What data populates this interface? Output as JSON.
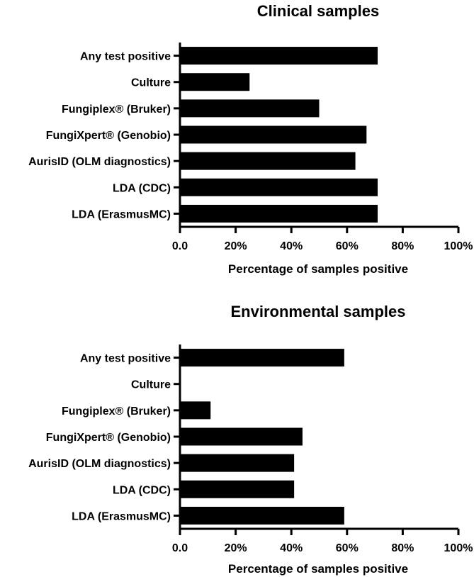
{
  "chart_data": [
    {
      "type": "bar",
      "orientation": "horizontal",
      "title": "Clinical samples",
      "categories": [
        "Any test positive",
        "Culture",
        "Fungiplex® (Bruker)",
        "FungiXpert® (Genobio)",
        "AurisID (OLM diagnostics)",
        "LDA (CDC)",
        "LDA (ErasmusMC)"
      ],
      "values": [
        71,
        25,
        50,
        67,
        63,
        71,
        71
      ],
      "xlabel": "Percentage of samples positive",
      "ylabel": "",
      "xlim": [
        0,
        100
      ],
      "xticks": [
        0,
        20,
        40,
        60,
        80,
        100
      ],
      "xtick_labels": [
        "0.0",
        "20%",
        "40%",
        "60%",
        "80%",
        "100%"
      ],
      "bar_color": "#000000",
      "grid": false
    },
    {
      "type": "bar",
      "orientation": "horizontal",
      "title": "Environmental samples",
      "categories": [
        "Any test positive",
        "Culture",
        "Fungiplex® (Bruker)",
        "FungiXpert® (Genobio)",
        "AurisID (OLM diagnostics)",
        "LDA (CDC)",
        "LDA (ErasmusMC)"
      ],
      "values": [
        59,
        0,
        11,
        44,
        41,
        41,
        59
      ],
      "xlabel": "Percentage of samples positive",
      "ylabel": "",
      "xlim": [
        0,
        100
      ],
      "xticks": [
        0,
        20,
        40,
        60,
        80,
        100
      ],
      "xtick_labels": [
        "0.0",
        "20%",
        "40%",
        "60%",
        "80%",
        "100%"
      ],
      "bar_color": "#000000",
      "grid": false
    }
  ]
}
